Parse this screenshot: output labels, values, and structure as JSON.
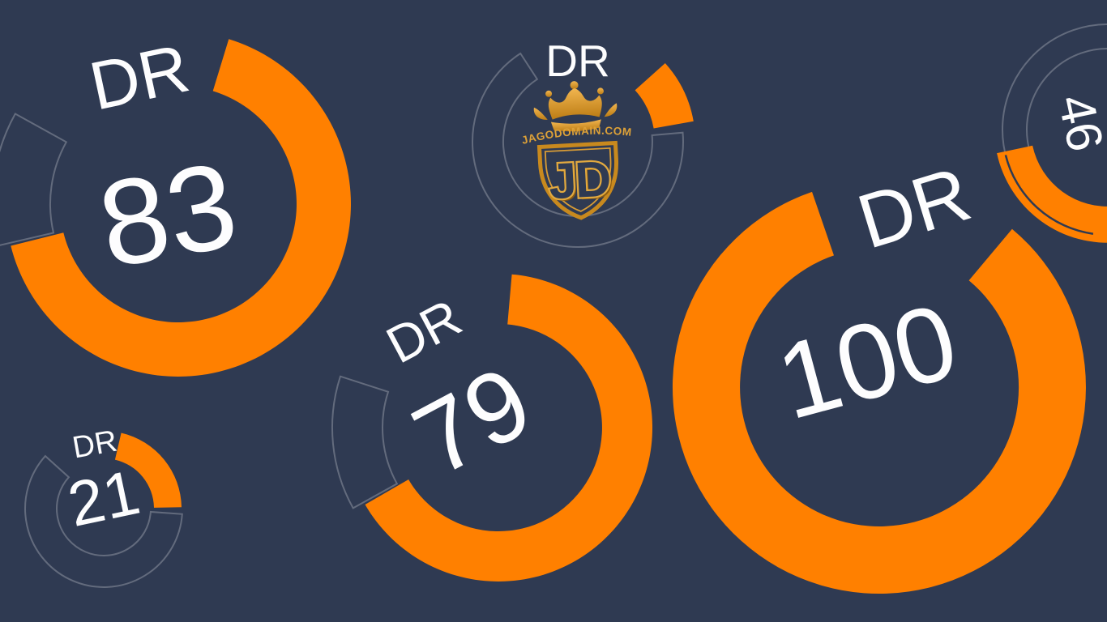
{
  "colors": {
    "background": "#2f3a52",
    "ring_orange": "#ff8000",
    "gauge_text": "#fdfdfe",
    "track_outline": "rgba(255,255,255,0.25)",
    "logo_gold": "#dda138",
    "logo_gold_dark": "#8a5a10"
  },
  "logo": {
    "brand_text": "JAGODOMAIN.COM",
    "monogram": "JD"
  },
  "chart_data": {
    "type": "gauge",
    "metric": "DR",
    "ring_color": "#ff8000",
    "track_style": "thin-outline-wedge",
    "legend": false,
    "gauges": [
      {
        "id": "dr-83",
        "label": "DR",
        "value": "83"
      },
      {
        "id": "dr-79",
        "label": "DR",
        "value": "79"
      },
      {
        "id": "dr-100",
        "label": "DR",
        "value": "100"
      },
      {
        "id": "dr-21",
        "label": "DR",
        "value": "21"
      },
      {
        "id": "dr-46",
        "label": "",
        "value": "46"
      },
      {
        "id": "dr-logo",
        "label": "DR",
        "value": ""
      }
    ]
  }
}
